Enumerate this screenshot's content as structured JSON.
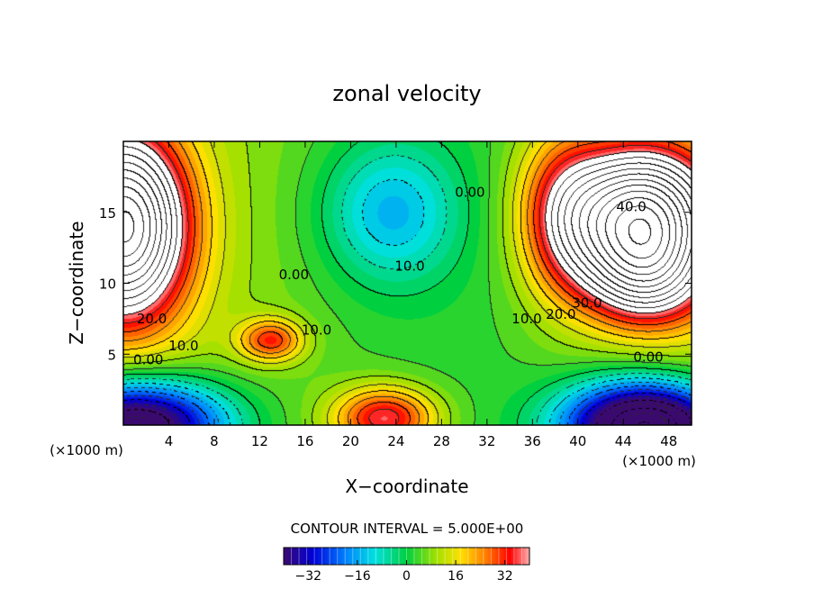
{
  "chart_data": {
    "type": "heatmap",
    "title": "zonal velocity",
    "xlabel": "X−coordinate",
    "ylabel": "Z−coordinate",
    "x_unit_left": "(×1000 m)",
    "x_unit_right": "(×1000 m)",
    "xlim": [
      0,
      50
    ],
    "ylim": [
      0,
      20
    ],
    "x_ticks": [
      4,
      8,
      12,
      16,
      20,
      24,
      28,
      32,
      36,
      40,
      44,
      48
    ],
    "y_ticks": [
      5,
      10,
      15
    ],
    "contour_interval_label": "CONTOUR INTERVAL = 5.000E+00",
    "contour_interval": 5,
    "colorbar": {
      "min": -40,
      "max": 40,
      "ticks": [
        -32,
        -16,
        0,
        16,
        32
      ]
    },
    "contour_labels": [
      {
        "text": "40.0",
        "x": 44.7,
        "y": 15.4
      },
      {
        "text": "30.0",
        "x": 40.8,
        "y": 8.6
      },
      {
        "text": "20.0",
        "x": 38.5,
        "y": 7.8
      },
      {
        "text": "10.0",
        "x": 35.5,
        "y": 7.5
      },
      {
        "text": "0.00",
        "x": 46.2,
        "y": 4.8
      },
      {
        "text": "0.00",
        "x": 30.5,
        "y": 16.4
      },
      {
        "text": "10.0",
        "x": 25.2,
        "y": 11.2
      },
      {
        "text": "0.00",
        "x": 15.0,
        "y": 10.6
      },
      {
        "text": "10.0",
        "x": 17.0,
        "y": 6.7
      },
      {
        "text": "20.0",
        "x": 2.5,
        "y": 7.5
      },
      {
        "text": "10.0",
        "x": 5.3,
        "y": 5.6
      },
      {
        "text": "0.00",
        "x": 2.2,
        "y": 4.6
      }
    ],
    "features": [
      {
        "kind": "max",
        "x": 45.5,
        "y": 14.5,
        "sx": 6.5,
        "sy": 5.0,
        "amp": 75
      },
      {
        "kind": "max",
        "x": 46.0,
        "y": 10.0,
        "sx": 5.5,
        "sy": 3.5,
        "amp": 25
      },
      {
        "kind": "max",
        "x": 38.5,
        "y": 15.0,
        "sx": 4.0,
        "sy": 6.0,
        "amp": 22
      },
      {
        "kind": "max",
        "x": 0.0,
        "y": 14.0,
        "sx": 5.5,
        "sy": 6.5,
        "amp": 70
      },
      {
        "kind": "max",
        "x": 13.0,
        "y": 6.0,
        "sx": 2.8,
        "sy": 1.5,
        "amp": 25
      },
      {
        "kind": "max",
        "x": 23.0,
        "y": 0.5,
        "sx": 4.5,
        "sy": 2.2,
        "amp": 33
      },
      {
        "kind": "min",
        "x": 1.0,
        "y": 0.0,
        "sx": 8.0,
        "sy": 3.2,
        "amp": -60
      },
      {
        "kind": "min",
        "x": 46.0,
        "y": 0.0,
        "sx": 7.0,
        "sy": 3.0,
        "amp": -70
      },
      {
        "kind": "min",
        "x": 23.5,
        "y": 15.0,
        "sx": 6.0,
        "sy": 5.0,
        "amp": -18
      }
    ]
  }
}
